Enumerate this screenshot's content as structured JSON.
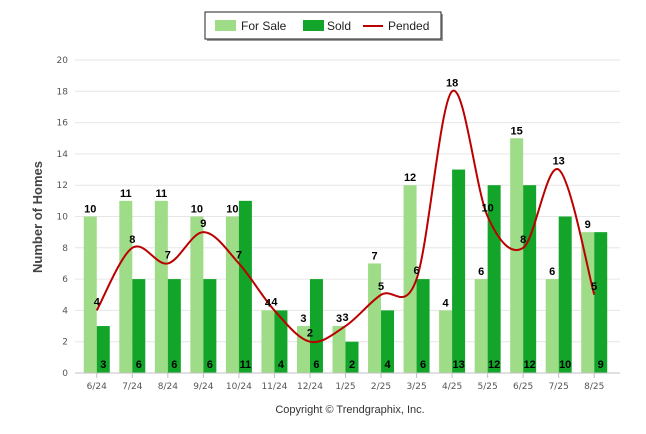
{
  "colors": {
    "for_sale": "#9fdc87",
    "sold": "#12a52a",
    "pended": "#bb0000",
    "grid": "#e6e6e6",
    "axis": "#c0c0c0"
  },
  "copyright": "Copyright © Trendgraphix, Inc.",
  "chart_data": {
    "type": "bar",
    "ylabel": "Number of Homes",
    "ylim": [
      0,
      20
    ],
    "yticks": [
      0,
      2,
      4,
      6,
      8,
      10,
      12,
      14,
      16,
      18,
      20
    ],
    "grid": true,
    "legend_position": "top-center",
    "categories": [
      "6/24",
      "7/24",
      "8/24",
      "9/24",
      "10/24",
      "11/24",
      "12/24",
      "1/25",
      "2/25",
      "3/25",
      "4/25",
      "5/25",
      "6/25",
      "7/25",
      "8/25"
    ],
    "series": [
      {
        "name": "For Sale",
        "kind": "bar",
        "values": [
          10,
          11,
          11,
          10,
          10,
          4,
          3,
          3,
          7,
          12,
          4,
          6,
          15,
          6,
          9
        ]
      },
      {
        "name": "Sold",
        "kind": "bar",
        "values": [
          3,
          6,
          6,
          6,
          11,
          4,
          6,
          2,
          4,
          6,
          13,
          12,
          12,
          10,
          9
        ]
      },
      {
        "name": "Pended",
        "kind": "line",
        "values": [
          4,
          8,
          7,
          9,
          7,
          4,
          2,
          3,
          5,
          6,
          18,
          10,
          8,
          13,
          5
        ]
      }
    ]
  }
}
